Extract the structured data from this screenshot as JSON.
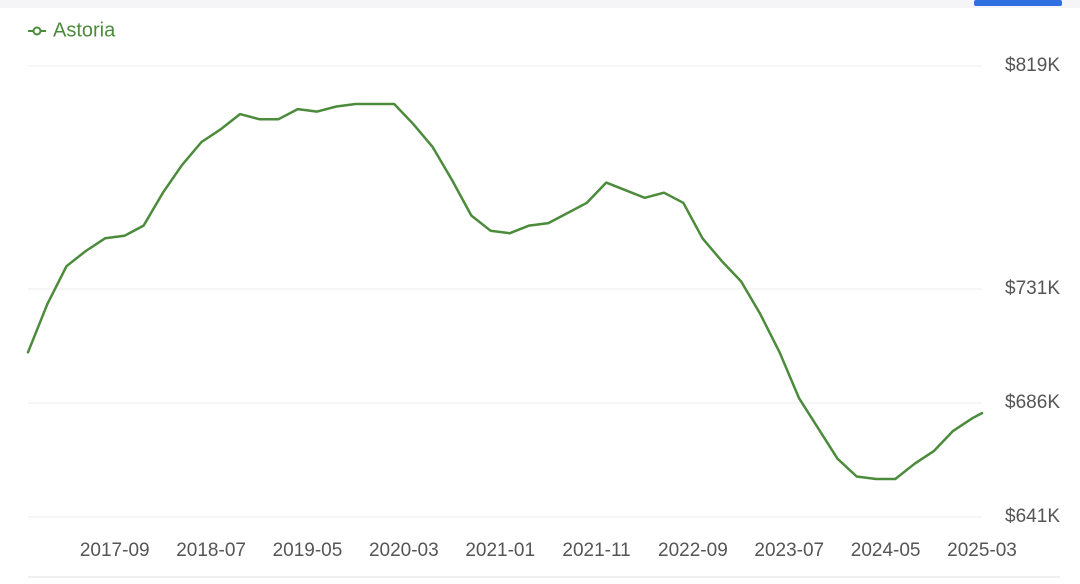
{
  "chart_data": {
    "type": "line",
    "x": [
      "2016-12",
      "2017-02",
      "2017-04",
      "2017-06",
      "2017-08",
      "2017-10",
      "2017-12",
      "2018-02",
      "2018-04",
      "2018-06",
      "2018-08",
      "2018-10",
      "2018-12",
      "2019-02",
      "2019-04",
      "2019-06",
      "2019-08",
      "2019-10",
      "2019-12",
      "2020-02",
      "2020-04",
      "2020-06",
      "2020-08",
      "2020-10",
      "2020-12",
      "2021-02",
      "2021-04",
      "2021-06",
      "2021-08",
      "2021-10",
      "2021-12",
      "2022-02",
      "2022-04",
      "2022-06",
      "2022-08",
      "2022-10",
      "2022-12",
      "2023-02",
      "2023-04",
      "2023-06",
      "2023-08",
      "2023-10",
      "2023-12",
      "2024-02",
      "2024-04",
      "2024-06",
      "2024-08",
      "2024-10",
      "2024-12",
      "2025-02",
      "2025-03"
    ],
    "series": [
      {
        "name": "Astoria",
        "color": "#4b8b3b",
        "values": [
          706000,
          725000,
          740000,
          746000,
          751000,
          752000,
          756000,
          769000,
          780000,
          789000,
          794000,
          800000,
          798000,
          798000,
          802000,
          801000,
          803000,
          804000,
          804000,
          804000,
          796000,
          787000,
          774000,
          760000,
          754000,
          753000,
          756000,
          757000,
          761000,
          765000,
          773000,
          770000,
          767000,
          769000,
          765000,
          751000,
          742000,
          734000,
          721000,
          706000,
          688000,
          676000,
          664000,
          657000,
          656000,
          656000,
          662000,
          667000,
          675000,
          680000,
          682000
        ]
      }
    ],
    "xticks": [
      "2017-09",
      "2018-07",
      "2019-05",
      "2020-03",
      "2021-01",
      "2021-11",
      "2022-09",
      "2023-07",
      "2024-05",
      "2025-03"
    ],
    "ylim": [
      641000,
      819000
    ],
    "yticks": [
      {
        "value": 641000,
        "label": "$641K"
      },
      {
        "value": 686000,
        "label": "$686K"
      },
      {
        "value": 731000,
        "label": "$731K"
      },
      {
        "value": 819000,
        "label": "$819K"
      }
    ],
    "grid": true,
    "legend": "top-left"
  }
}
